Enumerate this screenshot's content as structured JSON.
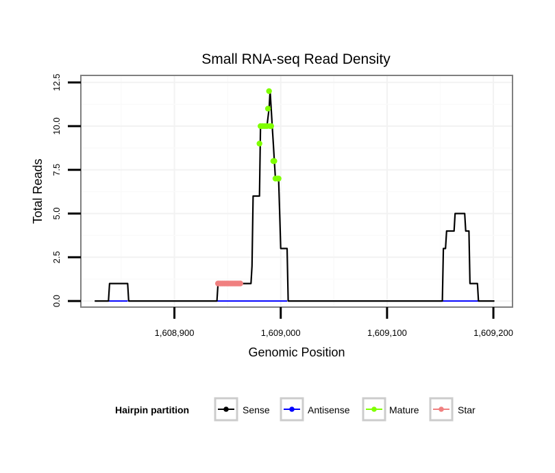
{
  "chart_data": {
    "type": "line",
    "title": "Small RNA-seq Read Density",
    "xlabel": "Genomic Position",
    "ylabel": "Total Reads",
    "xlim": [
      1608812,
      1609218
    ],
    "ylim": [
      -0.35,
      12.9
    ],
    "x_ticks": [
      1608900,
      1609000,
      1609100,
      1609200
    ],
    "x_tick_labels": [
      "1,608,900",
      "1,609,000",
      "1,609,100",
      "1,609,200"
    ],
    "y_ticks": [
      0,
      2.5,
      5,
      7.5,
      10,
      12.5
    ],
    "y_tick_labels": [
      "0.0",
      "2.5",
      "5.0",
      "7.5",
      "10.0",
      "12.5"
    ],
    "grid": true,
    "legend": {
      "title": "Hairpin partition",
      "position": "bottom",
      "entries": [
        {
          "name": "Sense",
          "color": "#000000"
        },
        {
          "name": "Antisense",
          "color": "#0000ff"
        },
        {
          "name": "Mature",
          "color": "#7fff00"
        },
        {
          "name": "Star",
          "color": "#f08080"
        }
      ]
    },
    "series": [
      {
        "name": "Sense",
        "color": "#000000",
        "kind": "line",
        "x": [
          1608825,
          1608838,
          1608839,
          1608856,
          1608857,
          1608940,
          1608941,
          1608952,
          1608962,
          1608972,
          1608973,
          1608974,
          1608980,
          1608981,
          1608987,
          1608989,
          1608990,
          1608991,
          1608992,
          1608993,
          1608994,
          1608995,
          1608998,
          1608999,
          1609000,
          1609001,
          1609006,
          1609007,
          1609152,
          1609153,
          1609155,
          1609156,
          1609163,
          1609164,
          1609173,
          1609174,
          1609177,
          1609178,
          1609185,
          1609186,
          1609201
        ],
        "y": [
          0,
          0,
          1,
          1,
          0,
          0,
          1,
          1,
          1,
          1,
          2,
          6,
          6,
          10,
          10,
          11,
          12,
          11,
          10,
          9,
          8,
          7,
          7,
          5,
          3,
          3,
          3,
          0,
          0,
          3,
          3,
          4,
          4,
          5,
          5,
          4,
          4,
          1,
          1,
          0,
          0
        ]
      },
      {
        "name": "Antisense",
        "color": "#0000ff",
        "kind": "line",
        "x": [
          1608838,
          1608856,
          1608940,
          1609006,
          1609152,
          1609186
        ],
        "y": [
          0,
          0,
          0,
          0,
          0,
          0
        ]
      },
      {
        "name": "Mature",
        "color": "#7fff00",
        "kind": "points",
        "x": [
          1608980,
          1608981,
          1608983,
          1608985,
          1608987,
          1608988,
          1608989,
          1608990,
          1608991,
          1608993,
          1608994,
          1608995,
          1608997,
          1608998
        ],
        "y": [
          9,
          10,
          10,
          10,
          10,
          11,
          12,
          10,
          10,
          8,
          8,
          7,
          7,
          7
        ]
      },
      {
        "name": "Star",
        "color": "#f08080",
        "kind": "points",
        "x": [
          1608941,
          1608942,
          1608943,
          1608944,
          1608945,
          1608946,
          1608947,
          1608948,
          1608949,
          1608950,
          1608951,
          1608952,
          1608953,
          1608954,
          1608955,
          1608956,
          1608957,
          1608958,
          1608959,
          1608960,
          1608961,
          1608962
        ],
        "y": [
          1,
          1,
          1,
          1,
          1,
          1,
          1,
          1,
          1,
          1,
          1,
          1,
          1,
          1,
          1,
          1,
          1,
          1,
          1,
          1,
          1,
          1
        ]
      }
    ]
  }
}
